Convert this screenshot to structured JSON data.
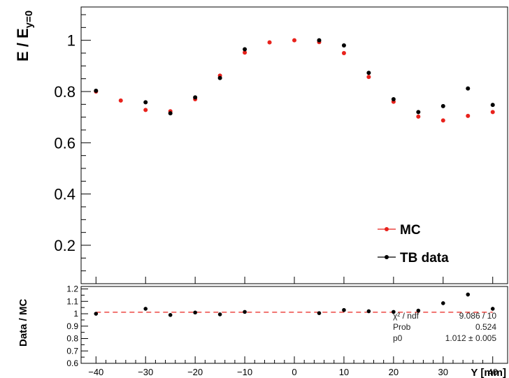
{
  "chart_data": [
    {
      "type": "scatter",
      "panel": "main",
      "ylabel_main": "E / E",
      "ylabel_sub": "y=0",
      "xlim": [
        -43,
        43
      ],
      "ylim": [
        0.05,
        1.13
      ],
      "yticks": [
        "0.2",
        "0.4",
        "0.6",
        "0.8",
        "1"
      ],
      "grid": false,
      "legend_position": "bottom-right",
      "series": [
        {
          "name": "MC",
          "color": "#e8221c",
          "x": [
            -40,
            -35,
            -30,
            -25,
            -20,
            -15,
            -10,
            -5,
            0,
            5,
            10,
            15,
            20,
            25,
            30,
            35,
            40
          ],
          "y": [
            0.8,
            0.765,
            0.728,
            0.723,
            0.77,
            0.862,
            0.952,
            0.992,
            1.0,
            0.993,
            0.95,
            0.857,
            0.76,
            0.702,
            0.687,
            0.705,
            0.72
          ]
        },
        {
          "name": "TB data",
          "color": "#000000",
          "x": [
            -40,
            -30,
            -25,
            -20,
            -15,
            -10,
            5,
            10,
            15,
            20,
            25,
            30,
            35,
            40
          ],
          "y": [
            0.803,
            0.758,
            0.715,
            0.777,
            0.853,
            0.965,
            1.0,
            0.98,
            0.873,
            0.77,
            0.72,
            0.743,
            0.812,
            0.748
          ]
        }
      ]
    },
    {
      "type": "scatter",
      "panel": "ratio",
      "ylabel": "Data / MC",
      "xlabel": "Y [mm]",
      "xlim": [
        -43,
        43
      ],
      "ylim": [
        0.6,
        1.22
      ],
      "yticks": [
        "0.6",
        "0.7",
        "0.8",
        "0.9",
        "1",
        "1.1",
        "1.2"
      ],
      "xticks": [
        "−40",
        "−30",
        "−20",
        "−10",
        "0",
        "10",
        "20",
        "30",
        "40"
      ],
      "fit_line": {
        "color": "#e8221c",
        "value": 1.012
      },
      "series": [
        {
          "name": "Data / MC",
          "color": "#000000",
          "x": [
            -40,
            -30,
            -25,
            -20,
            -15,
            -10,
            5,
            10,
            15,
            20,
            25,
            30,
            35,
            40
          ],
          "y": [
            1.0,
            1.04,
            0.99,
            1.01,
            0.995,
            1.015,
            1.005,
            1.03,
            1.02,
            1.015,
            1.025,
            1.085,
            1.155,
            1.04
          ],
          "err": [
            0.012,
            0.014,
            0.014,
            0.013,
            0.012,
            0.011,
            0.011,
            0.011,
            0.012,
            0.013,
            0.014,
            0.015,
            0.016,
            0.015
          ]
        }
      ],
      "stats": [
        {
          "label": "χ² / ndf",
          "value": "9.086 / 10"
        },
        {
          "label": "Prob",
          "value": "0.524"
        },
        {
          "label": "p0",
          "value": "1.012 ± 0.005"
        }
      ]
    }
  ]
}
